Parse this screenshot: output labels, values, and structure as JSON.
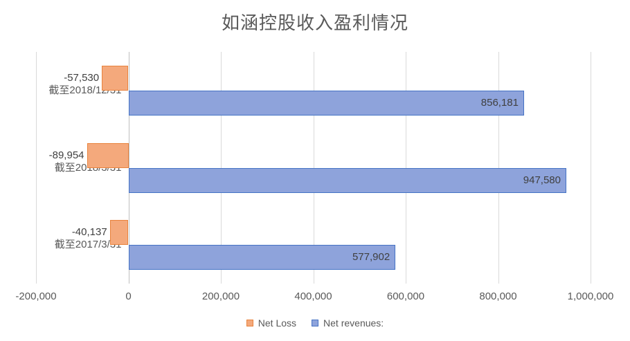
{
  "chart_data": {
    "type": "bar",
    "orientation": "horizontal",
    "title": "如涵控股收入盈利情况",
    "categories": [
      "截至2018/12/31",
      "截至2018/3/31",
      "截至2017/3/31"
    ],
    "series": [
      {
        "name": "Net Loss",
        "values": [
          -57530,
          -89954,
          -40137
        ],
        "labels": [
          "-57,530",
          "-89,954",
          "-40,137"
        ],
        "fill": "#f4a97c",
        "border": "#e8823c",
        "label_placement": "outside-end"
      },
      {
        "name": "Net revenues:",
        "values": [
          856181,
          947580,
          577902
        ],
        "labels": [
          "856,181",
          "947,580",
          "577,902"
        ],
        "fill": "#8ea3db",
        "border": "#4472c4",
        "label_placement": "inside-end"
      }
    ],
    "x_axis": {
      "min": -200000,
      "max": 1000000,
      "tick_step": 200000,
      "tick_labels": [
        "-200,000",
        "0",
        "200,000",
        "400,000",
        "600,000",
        "800,000",
        "1,000,000"
      ]
    },
    "grid": true,
    "legend_position": "bottom"
  }
}
